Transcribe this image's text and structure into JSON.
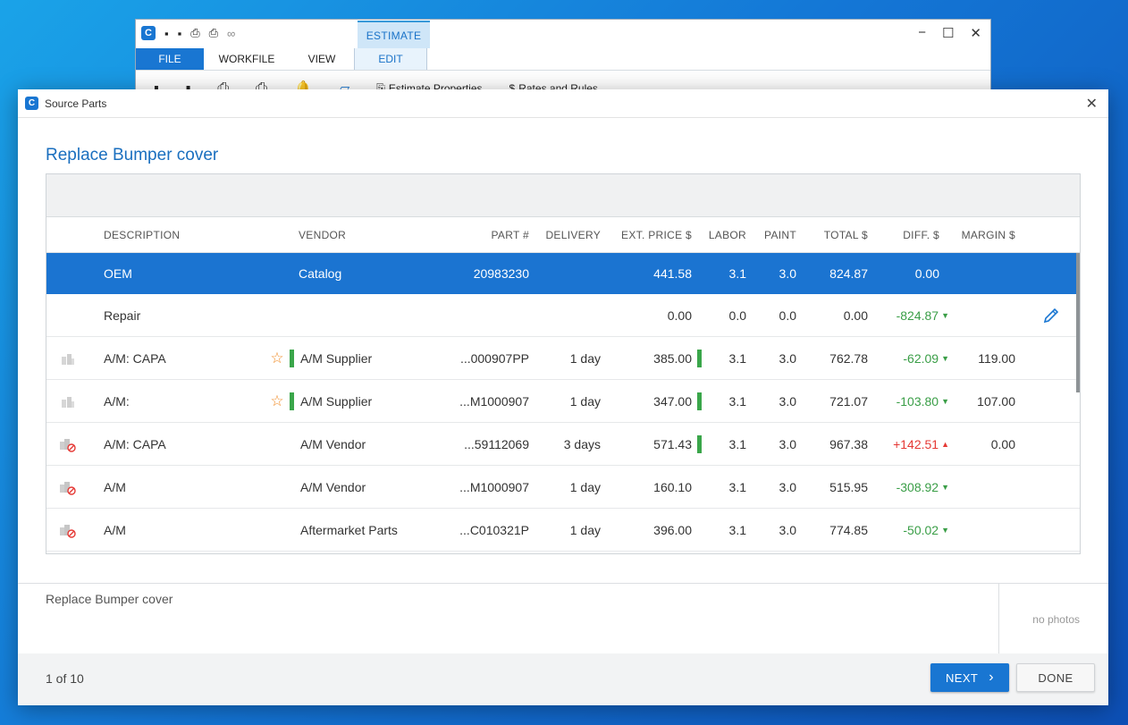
{
  "background_app": {
    "context_tab": "ESTIMATE",
    "tabs": [
      "FILE",
      "WORKFILE",
      "VIEW",
      "EDIT"
    ],
    "ribbon": {
      "estimate_properties": "Estimate Properties",
      "rates_and_rules": "Rates and Rules"
    }
  },
  "dialog": {
    "title": "Source Parts",
    "close": "✕",
    "heading": "Replace Bumper cover"
  },
  "columns": {
    "description": "DESCRIPTION",
    "vendor": "VENDOR",
    "part": "PART #",
    "delivery": "DELIVERY",
    "ext_price": "EXT. PRICE $",
    "labor": "LABOR",
    "paint": "PAINT",
    "total": "TOTAL $",
    "diff": "DIFF. $",
    "margin": "MARGIN $"
  },
  "rows": [
    {
      "description": "OEM",
      "vendor": "Catalog",
      "part": "20983230",
      "delivery": "",
      "ext_price": "441.58",
      "labor": "3.1",
      "paint": "3.0",
      "total": "824.87",
      "diff": "0.00",
      "margin": ""
    },
    {
      "description": "Repair",
      "vendor": "",
      "part": "",
      "delivery": "",
      "ext_price": "0.00",
      "labor": "0.0",
      "paint": "0.0",
      "total": "0.00",
      "diff": "-824.87",
      "margin": ""
    },
    {
      "description": "A/M: CAPA",
      "vendor": "A/M Supplier",
      "part": "...000907PP",
      "delivery": "1 day",
      "ext_price": "385.00",
      "labor": "3.1",
      "paint": "3.0",
      "total": "762.78",
      "diff": "-62.09",
      "margin": "119.00"
    },
    {
      "description": "A/M:",
      "vendor": "A/M Supplier",
      "part": "...M1000907",
      "delivery": "1 day",
      "ext_price": "347.00",
      "labor": "3.1",
      "paint": "3.0",
      "total": "721.07",
      "diff": "-103.80",
      "margin": "107.00"
    },
    {
      "description": "A/M: CAPA",
      "vendor": "A/M Vendor",
      "part": "...59112069",
      "delivery": "3 days",
      "ext_price": "571.43",
      "labor": "3.1",
      "paint": "3.0",
      "total": "967.38",
      "diff": "+142.51",
      "margin": "0.00"
    },
    {
      "description": "A/M",
      "vendor": "A/M Vendor",
      "part": "...M1000907",
      "delivery": "1 day",
      "ext_price": "160.10",
      "labor": "3.1",
      "paint": "3.0",
      "total": "515.95",
      "diff": "-308.92",
      "margin": ""
    },
    {
      "description": "A/M",
      "vendor": "Aftermarket Parts",
      "part": "...C010321P",
      "delivery": "1 day",
      "ext_price": "396.00",
      "labor": "3.1",
      "paint": "3.0",
      "total": "774.85",
      "diff": "-50.02",
      "margin": ""
    }
  ],
  "notes": {
    "line_description": "Replace Bumper cover",
    "photos": "no photos"
  },
  "footer": {
    "pager": "1 of 10",
    "next": "NEXT",
    "done": "DONE"
  },
  "colors": {
    "accent": "#1976d2",
    "selected_row": "#1b74d1",
    "negative_diff": "#3a9e47",
    "positive_diff": "#e53935",
    "star": "#f08a24",
    "price_bar": "#3aa64a"
  }
}
